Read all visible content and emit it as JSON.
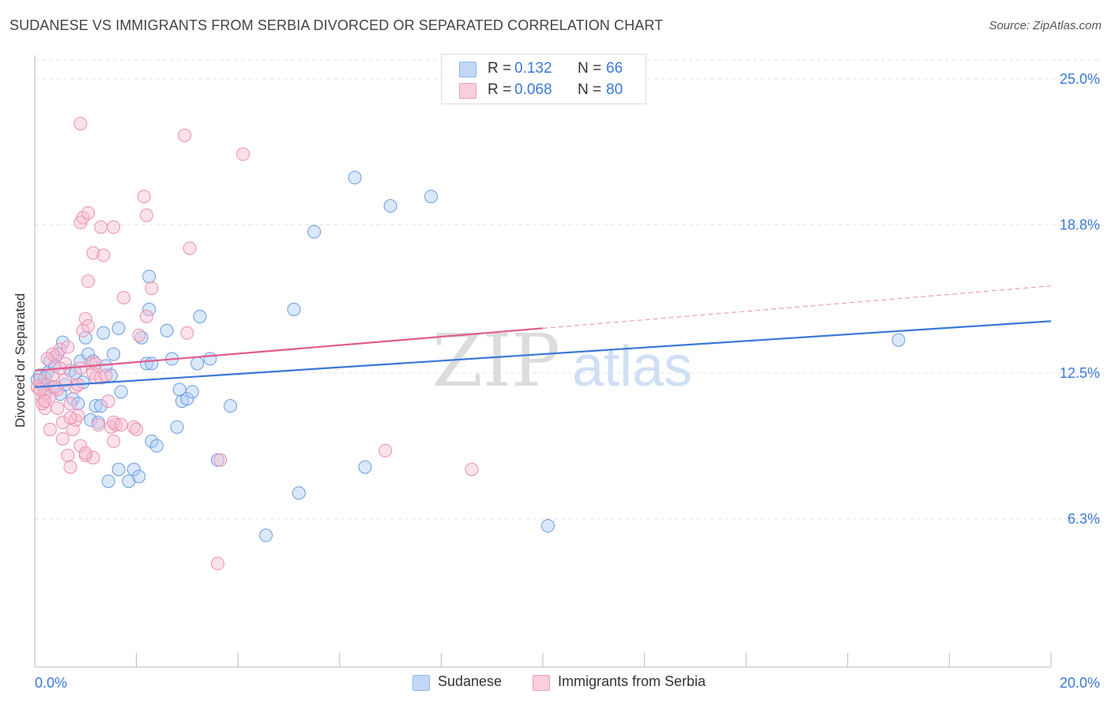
{
  "title": "SUDANESE VS IMMIGRANTS FROM SERBIA DIVORCED OR SEPARATED CORRELATION CHART",
  "source": "Source: ZipAtlas.com",
  "watermark": {
    "zip": "ZIP",
    "atlas": "atlas"
  },
  "legend": {
    "r_label": "R =",
    "n_label": "N =",
    "rows": [
      {
        "name": "Sudanese",
        "r": "0.132",
        "n": "66",
        "fill": "#aecbf3",
        "stroke": "#6a9de0"
      },
      {
        "name": "Immigrants from Serbia",
        "r": "0.068",
        "n": "80",
        "fill": "#f7bfd0",
        "stroke": "#e98aaa"
      }
    ]
  },
  "chart_data": {
    "type": "scatter",
    "title": "SUDANESE VS IMMIGRANTS FROM SERBIA DIVORCED OR SEPARATED CORRELATION CHART",
    "xlabel": "",
    "ylabel": "Divorced or Separated",
    "xlim": [
      0,
      20
    ],
    "ylim": [
      0,
      26
    ],
    "x_tick_labels": [
      "0.0%",
      "20.0%"
    ],
    "y_ticks": [
      6.3,
      12.5,
      18.8,
      25.0
    ],
    "y_tick_labels": [
      "6.3%",
      "12.5%",
      "18.8%",
      "25.0%"
    ],
    "grid": "horizontal dashed",
    "legend_position": "top-center",
    "series": [
      {
        "name": "Sudanese",
        "color": "#3a78d8",
        "trend": {
          "x": [
            0,
            20
          ],
          "y": [
            11.9,
            14.7
          ],
          "style": "solid"
        },
        "points": [
          [
            0.05,
            12.2
          ],
          [
            0.1,
            12.4
          ],
          [
            0.15,
            12.0
          ],
          [
            0.2,
            11.8
          ],
          [
            0.25,
            12.5
          ],
          [
            0.3,
            13.0
          ],
          [
            0.35,
            11.9
          ],
          [
            0.4,
            12.8
          ],
          [
            0.45,
            13.3
          ],
          [
            0.5,
            11.6
          ],
          [
            0.55,
            13.8
          ],
          [
            0.6,
            12.0
          ],
          [
            0.7,
            12.6
          ],
          [
            0.75,
            11.4
          ],
          [
            0.8,
            12.5
          ],
          [
            0.85,
            11.2
          ],
          [
            0.9,
            13.0
          ],
          [
            0.95,
            12.1
          ],
          [
            1.0,
            14.0
          ],
          [
            1.05,
            13.3
          ],
          [
            1.1,
            10.5
          ],
          [
            1.15,
            13.0
          ],
          [
            1.2,
            11.1
          ],
          [
            1.25,
            10.4
          ],
          [
            1.3,
            11.1
          ],
          [
            1.35,
            14.2
          ],
          [
            1.4,
            12.8
          ],
          [
            1.5,
            12.4
          ],
          [
            1.55,
            13.3
          ],
          [
            1.7,
            11.7
          ],
          [
            1.65,
            14.4
          ],
          [
            1.45,
            7.9
          ],
          [
            1.65,
            8.4
          ],
          [
            1.85,
            7.9
          ],
          [
            1.95,
            8.4
          ],
          [
            2.05,
            8.1
          ],
          [
            2.1,
            14.0
          ],
          [
            2.2,
            12.9
          ],
          [
            2.25,
            15.2
          ],
          [
            2.25,
            16.6
          ],
          [
            2.3,
            12.9
          ],
          [
            2.3,
            9.6
          ],
          [
            2.4,
            9.4
          ],
          [
            2.6,
            14.3
          ],
          [
            2.7,
            13.1
          ],
          [
            2.8,
            10.2
          ],
          [
            2.85,
            11.8
          ],
          [
            2.9,
            11.3
          ],
          [
            3.0,
            11.4
          ],
          [
            3.1,
            11.7
          ],
          [
            3.2,
            12.9
          ],
          [
            3.25,
            14.9
          ],
          [
            3.45,
            13.1
          ],
          [
            3.6,
            8.8
          ],
          [
            3.85,
            11.1
          ],
          [
            4.55,
            5.6
          ],
          [
            5.1,
            15.2
          ],
          [
            5.2,
            7.4
          ],
          [
            5.5,
            18.5
          ],
          [
            6.3,
            20.8
          ],
          [
            6.5,
            8.5
          ],
          [
            7.0,
            19.6
          ],
          [
            7.8,
            20.0
          ],
          [
            10.1,
            6.0
          ],
          [
            17.0,
            13.9
          ],
          [
            0.2,
            12.3
          ]
        ]
      },
      {
        "name": "Immigrants from Serbia",
        "color": "#e05c8a",
        "trend": {
          "x": [
            0,
            10
          ],
          "y": [
            12.6,
            14.4
          ],
          "style": "solid",
          "extension": {
            "x": [
              10,
              20
            ],
            "y": [
              14.4,
              16.2
            ],
            "style": "dashed"
          }
        },
        "points": [
          [
            0.05,
            11.9
          ],
          [
            0.1,
            12.2
          ],
          [
            0.15,
            11.4
          ],
          [
            0.2,
            11.0
          ],
          [
            0.25,
            12.0
          ],
          [
            0.3,
            11.5
          ],
          [
            0.35,
            12.4
          ],
          [
            0.4,
            13.2
          ],
          [
            0.45,
            11.8
          ],
          [
            0.5,
            13.5
          ],
          [
            0.55,
            10.4
          ],
          [
            0.6,
            12.9
          ],
          [
            0.65,
            13.6
          ],
          [
            0.7,
            11.2
          ],
          [
            0.75,
            10.1
          ],
          [
            0.8,
            10.5
          ],
          [
            0.85,
            10.7
          ],
          [
            0.9,
            9.4
          ],
          [
            0.95,
            14.3
          ],
          [
            1.0,
            14.8
          ],
          [
            1.05,
            14.5
          ],
          [
            1.1,
            12.9
          ],
          [
            1.15,
            12.5
          ],
          [
            1.2,
            12.3
          ],
          [
            1.25,
            10.3
          ],
          [
            0.9,
            18.9
          ],
          [
            0.95,
            19.1
          ],
          [
            1.05,
            19.3
          ],
          [
            1.3,
            18.7
          ],
          [
            1.55,
            18.7
          ],
          [
            1.15,
            17.6
          ],
          [
            1.35,
            17.5
          ],
          [
            1.05,
            16.4
          ],
          [
            1.75,
            15.7
          ],
          [
            2.05,
            14.1
          ],
          [
            2.2,
            14.9
          ],
          [
            2.3,
            16.1
          ],
          [
            2.15,
            20.0
          ],
          [
            2.2,
            19.2
          ],
          [
            1.5,
            10.2
          ],
          [
            1.6,
            10.3
          ],
          [
            1.55,
            9.6
          ],
          [
            1.95,
            10.2
          ],
          [
            2.0,
            10.1
          ],
          [
            1.0,
            9.0
          ],
          [
            1.15,
            8.9
          ],
          [
            0.65,
            9.0
          ],
          [
            0.7,
            8.5
          ],
          [
            0.55,
            9.7
          ],
          [
            0.45,
            11.0
          ],
          [
            0.3,
            10.1
          ],
          [
            0.35,
            13.3
          ],
          [
            0.25,
            13.1
          ],
          [
            0.2,
            11.6
          ],
          [
            0.15,
            11.2
          ],
          [
            0.4,
            11.9
          ],
          [
            0.5,
            12.7
          ],
          [
            0.6,
            12.2
          ],
          [
            0.8,
            11.9
          ],
          [
            0.85,
            12.0
          ],
          [
            0.9,
            12.7
          ],
          [
            1.2,
            12.9
          ],
          [
            1.3,
            12.3
          ],
          [
            1.4,
            12.4
          ],
          [
            1.45,
            11.3
          ],
          [
            1.55,
            10.4
          ],
          [
            1.7,
            10.3
          ],
          [
            0.9,
            23.1
          ],
          [
            2.95,
            22.6
          ],
          [
            4.1,
            21.8
          ],
          [
            3.05,
            17.8
          ],
          [
            3.0,
            14.2
          ],
          [
            3.65,
            8.8
          ],
          [
            3.6,
            4.4
          ],
          [
            6.9,
            9.2
          ],
          [
            8.6,
            8.4
          ],
          [
            0.1,
            11.8
          ],
          [
            0.2,
            11.3
          ],
          [
            0.7,
            10.6
          ],
          [
            1.0,
            9.1
          ]
        ]
      }
    ]
  }
}
